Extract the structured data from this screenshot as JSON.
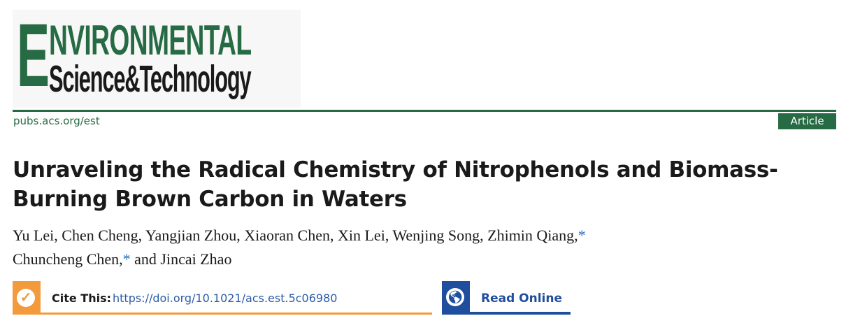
{
  "journal": {
    "logo_text": "Environmental Science & Technology",
    "logo_initial": "E",
    "logo_line1": "NVIRONMENTAL",
    "logo_line2": "Science&Technology",
    "url": "pubs.acs.org/est",
    "type_badge": "Article",
    "brand_color": "#266b43"
  },
  "article": {
    "title": "Unraveling the Radical Chemistry of Nitrophenols and Biomass-Burning Brown Carbon in Waters",
    "authors_line1": "Yu Lei, Chen Cheng, Yangjian Zhou, Xiaoran Chen, Xin Lei, Wenjing Song, Zhimin Qiang,",
    "authors_line2_a": "Chuncheng Chen,",
    "authors_line2_b": " and Jincai Zhao",
    "asterisk": "*"
  },
  "cite": {
    "label": "Cite This:",
    "doi": "https://doi.org/10.1021/acs.est.5c06980",
    "icon": "checkmark-icon",
    "color": "#f29a3c"
  },
  "read_online": {
    "label": "Read Online",
    "icon": "globe-icon",
    "color": "#1f4e9e"
  }
}
